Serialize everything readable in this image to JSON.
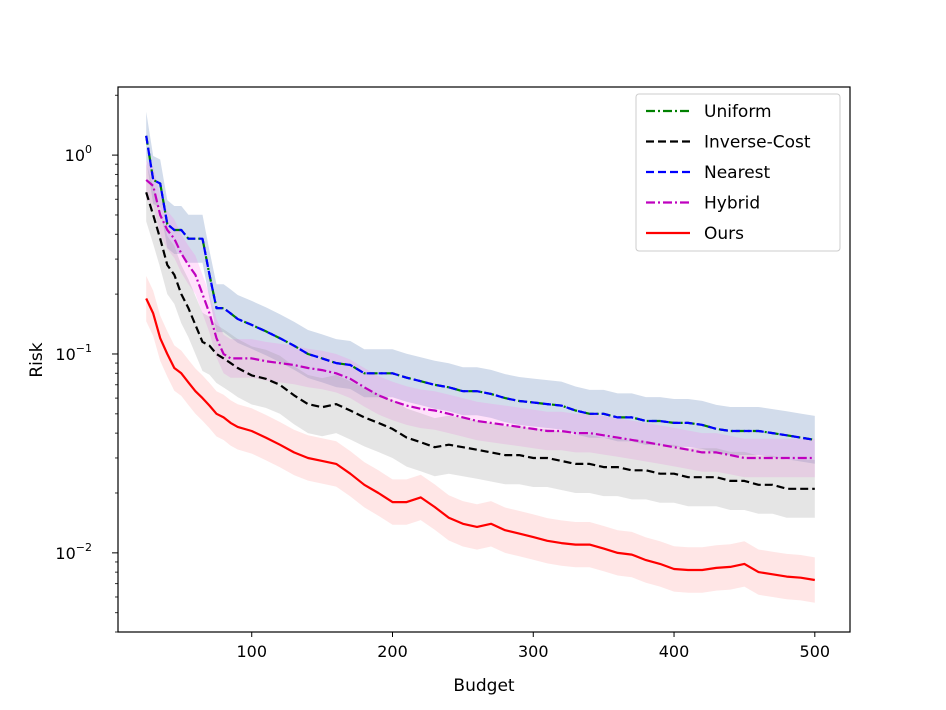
{
  "chart_data": {
    "type": "line",
    "title": "",
    "xlabel": "Budget",
    "ylabel": "Risk",
    "yscale": "log",
    "xlim": [
      5,
      525
    ],
    "ylim": [
      0.004,
      2.2
    ],
    "grid": false,
    "legend_position": "top-right",
    "x_ticks": [
      {
        "value": 100,
        "label": "100"
      },
      {
        "value": 200,
        "label": "200"
      },
      {
        "value": 300,
        "label": "300"
      },
      {
        "value": 400,
        "label": "400"
      },
      {
        "value": 500,
        "label": "500"
      }
    ],
    "y_ticks": [
      {
        "value": 1,
        "base": "10",
        "exp": "0"
      },
      {
        "value": 0.1,
        "base": "10",
        "exp": "−1"
      },
      {
        "value": 0.01,
        "base": "10",
        "exp": "−2"
      }
    ],
    "x": [
      25,
      30,
      35,
      40,
      45,
      50,
      55,
      60,
      65,
      70,
      75,
      80,
      85,
      90,
      100,
      110,
      120,
      130,
      140,
      150,
      160,
      170,
      180,
      190,
      200,
      210,
      220,
      230,
      240,
      250,
      260,
      270,
      280,
      290,
      300,
      310,
      320,
      330,
      340,
      350,
      360,
      370,
      380,
      390,
      400,
      410,
      420,
      430,
      440,
      450,
      460,
      470,
      480,
      490,
      500
    ],
    "series": [
      {
        "name": "Uniform",
        "color": "#008000",
        "dash": "dashdot",
        "values": [
          1.25,
          0.75,
          0.72,
          0.45,
          0.42,
          0.42,
          0.38,
          0.38,
          0.38,
          0.25,
          0.17,
          0.17,
          0.16,
          0.15,
          0.14,
          0.13,
          0.12,
          0.11,
          0.1,
          0.095,
          0.09,
          0.088,
          0.08,
          0.08,
          0.08,
          0.076,
          0.073,
          0.07,
          0.068,
          0.065,
          0.065,
          0.063,
          0.06,
          0.058,
          0.057,
          0.056,
          0.055,
          0.052,
          0.05,
          0.05,
          0.048,
          0.048,
          0.046,
          0.046,
          0.045,
          0.045,
          0.044,
          0.042,
          0.041,
          0.041,
          0.041,
          0.04,
          0.039,
          0.038,
          0.037
        ]
      },
      {
        "name": "Inverse-Cost",
        "color": "#000000",
        "dash": "dashed",
        "values": [
          0.65,
          0.5,
          0.38,
          0.28,
          0.25,
          0.2,
          0.17,
          0.14,
          0.115,
          0.11,
          0.1,
          0.095,
          0.09,
          0.085,
          0.078,
          0.075,
          0.07,
          0.062,
          0.056,
          0.054,
          0.056,
          0.052,
          0.048,
          0.045,
          0.042,
          0.038,
          0.036,
          0.034,
          0.035,
          0.034,
          0.033,
          0.032,
          0.031,
          0.031,
          0.03,
          0.03,
          0.029,
          0.028,
          0.028,
          0.027,
          0.027,
          0.026,
          0.026,
          0.025,
          0.025,
          0.024,
          0.024,
          0.024,
          0.023,
          0.023,
          0.022,
          0.022,
          0.021,
          0.021,
          0.021
        ]
      },
      {
        "name": "Nearest",
        "color": "#0000ff",
        "dash": "dashed",
        "values": [
          1.25,
          0.75,
          0.72,
          0.45,
          0.42,
          0.42,
          0.38,
          0.38,
          0.38,
          0.25,
          0.17,
          0.17,
          0.16,
          0.15,
          0.14,
          0.13,
          0.12,
          0.11,
          0.1,
          0.095,
          0.09,
          0.088,
          0.08,
          0.08,
          0.08,
          0.076,
          0.073,
          0.07,
          0.068,
          0.065,
          0.065,
          0.063,
          0.06,
          0.058,
          0.057,
          0.056,
          0.055,
          0.052,
          0.05,
          0.05,
          0.048,
          0.048,
          0.046,
          0.046,
          0.045,
          0.045,
          0.044,
          0.042,
          0.041,
          0.041,
          0.041,
          0.04,
          0.039,
          0.038,
          0.037
        ]
      },
      {
        "name": "Hybrid",
        "color": "#bf00bf",
        "dash": "dashdot",
        "values": [
          0.75,
          0.7,
          0.5,
          0.42,
          0.38,
          0.32,
          0.28,
          0.25,
          0.2,
          0.16,
          0.12,
          0.1,
          0.095,
          0.095,
          0.095,
          0.092,
          0.09,
          0.088,
          0.085,
          0.083,
          0.08,
          0.075,
          0.068,
          0.062,
          0.058,
          0.055,
          0.053,
          0.052,
          0.05,
          0.048,
          0.046,
          0.045,
          0.044,
          0.043,
          0.042,
          0.041,
          0.041,
          0.04,
          0.04,
          0.039,
          0.038,
          0.037,
          0.036,
          0.035,
          0.034,
          0.033,
          0.032,
          0.032,
          0.031,
          0.03,
          0.03,
          0.03,
          0.03,
          0.03,
          0.03
        ]
      },
      {
        "name": "Ours",
        "color": "#ff0000",
        "dash": "solid",
        "values": [
          0.19,
          0.16,
          0.12,
          0.1,
          0.085,
          0.08,
          0.072,
          0.065,
          0.06,
          0.055,
          0.05,
          0.048,
          0.045,
          0.043,
          0.041,
          0.038,
          0.035,
          0.032,
          0.03,
          0.029,
          0.028,
          0.025,
          0.022,
          0.02,
          0.018,
          0.018,
          0.019,
          0.017,
          0.015,
          0.014,
          0.0135,
          0.014,
          0.013,
          0.0125,
          0.012,
          0.0115,
          0.0112,
          0.011,
          0.011,
          0.0105,
          0.01,
          0.0098,
          0.0092,
          0.0088,
          0.0083,
          0.0082,
          0.0082,
          0.0084,
          0.0085,
          0.0088,
          0.008,
          0.0078,
          0.0076,
          0.0075,
          0.0073
        ]
      }
    ],
    "bands": [
      {
        "for": "Nearest",
        "color": "#4c72b0",
        "opacity": 0.25,
        "factor": 1.32
      },
      {
        "for": "Hybrid",
        "color": "#ff77ee",
        "opacity": 0.22,
        "factor": 1.25
      },
      {
        "for": "Inverse-Cost",
        "color": "#999999",
        "opacity": 0.25,
        "factor": 1.4
      },
      {
        "for": "Ours",
        "color": "#ff8080",
        "opacity": 0.2,
        "factor": 1.3
      }
    ]
  }
}
